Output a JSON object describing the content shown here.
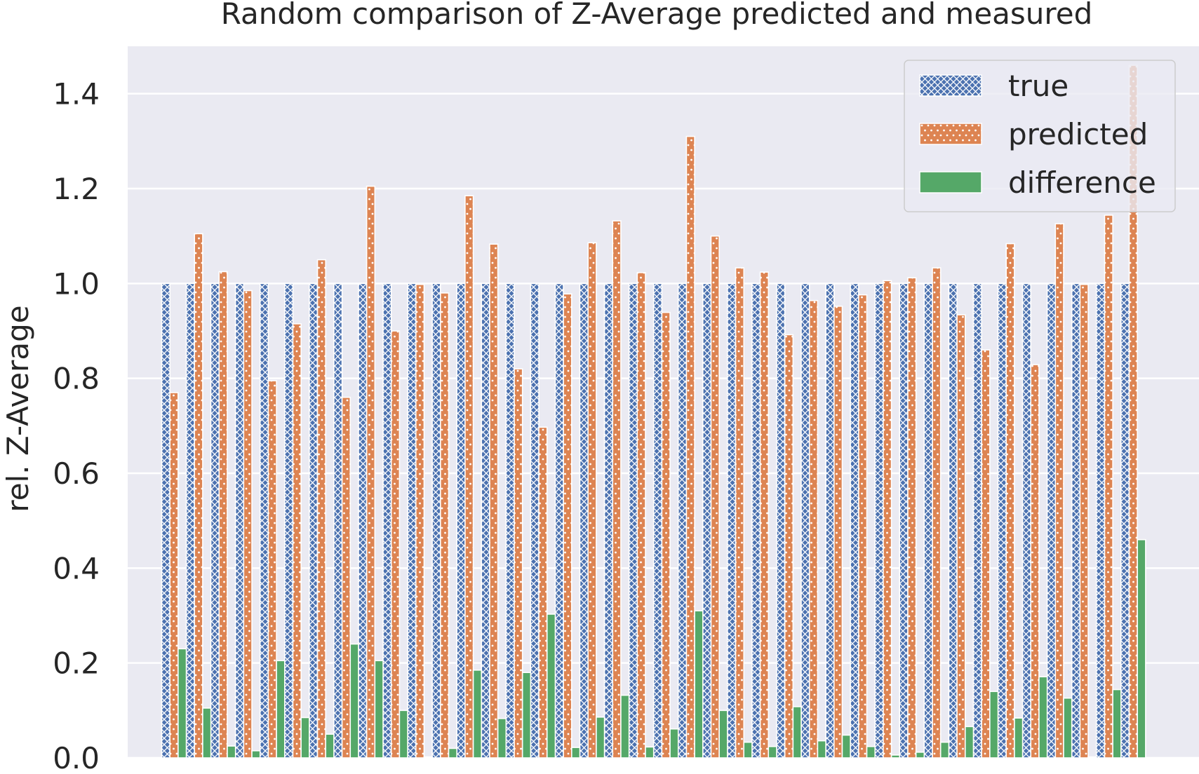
{
  "chart_data": {
    "type": "bar",
    "title": "Random comparison of Z-Average predicted and measured",
    "xlabel": "",
    "ylabel": "rel. Z-Average",
    "ylim": [
      0,
      1.5
    ],
    "yticks": [
      "0.0",
      "0.2",
      "0.4",
      "0.6",
      "0.8",
      "1.0",
      "1.2",
      "1.4"
    ],
    "grid": true,
    "legend_position": "top-right",
    "series": [
      {
        "name": "true",
        "pattern": "crosshatch",
        "color": "#4c72b0",
        "values": [
          1.0,
          1.0,
          1.0,
          1.0,
          1.0,
          1.0,
          1.0,
          1.0,
          1.0,
          1.0,
          1.0,
          1.0,
          1.0,
          1.0,
          1.0,
          1.0,
          1.0,
          1.0,
          1.0,
          1.0,
          1.0,
          1.0,
          1.0,
          1.0,
          1.0,
          1.0,
          1.0,
          1.0,
          1.0,
          1.0,
          1.0,
          1.0,
          1.0,
          1.0,
          1.0,
          1.0,
          1.0,
          1.0,
          1.0,
          1.0
        ]
      },
      {
        "name": "predicted",
        "pattern": "dotted",
        "color": "#dd8452",
        "values": [
          0.77,
          1.105,
          1.025,
          0.985,
          0.795,
          0.915,
          1.05,
          0.76,
          1.205,
          0.9,
          0.998,
          0.98,
          1.185,
          1.083,
          0.82,
          0.697,
          0.978,
          1.086,
          1.132,
          1.023,
          0.939,
          1.31,
          1.1,
          1.033,
          1.024,
          0.892,
          0.964,
          0.952,
          0.976,
          1.006,
          1.012,
          1.033,
          0.934,
          0.86,
          1.084,
          0.829,
          1.126,
          0.998,
          1.144,
          1.46
        ]
      },
      {
        "name": "difference",
        "pattern": "solid",
        "color": "#55a868",
        "values": [
          0.23,
          0.105,
          0.025,
          0.015,
          0.205,
          0.085,
          0.05,
          0.24,
          0.205,
          0.1,
          0.002,
          0.02,
          0.185,
          0.083,
          0.18,
          0.303,
          0.022,
          0.086,
          0.132,
          0.023,
          0.061,
          0.31,
          0.1,
          0.033,
          0.024,
          0.108,
          0.036,
          0.048,
          0.024,
          0.006,
          0.012,
          0.033,
          0.066,
          0.14,
          0.084,
          0.171,
          0.126,
          0.002,
          0.144,
          0.46
        ]
      }
    ]
  }
}
